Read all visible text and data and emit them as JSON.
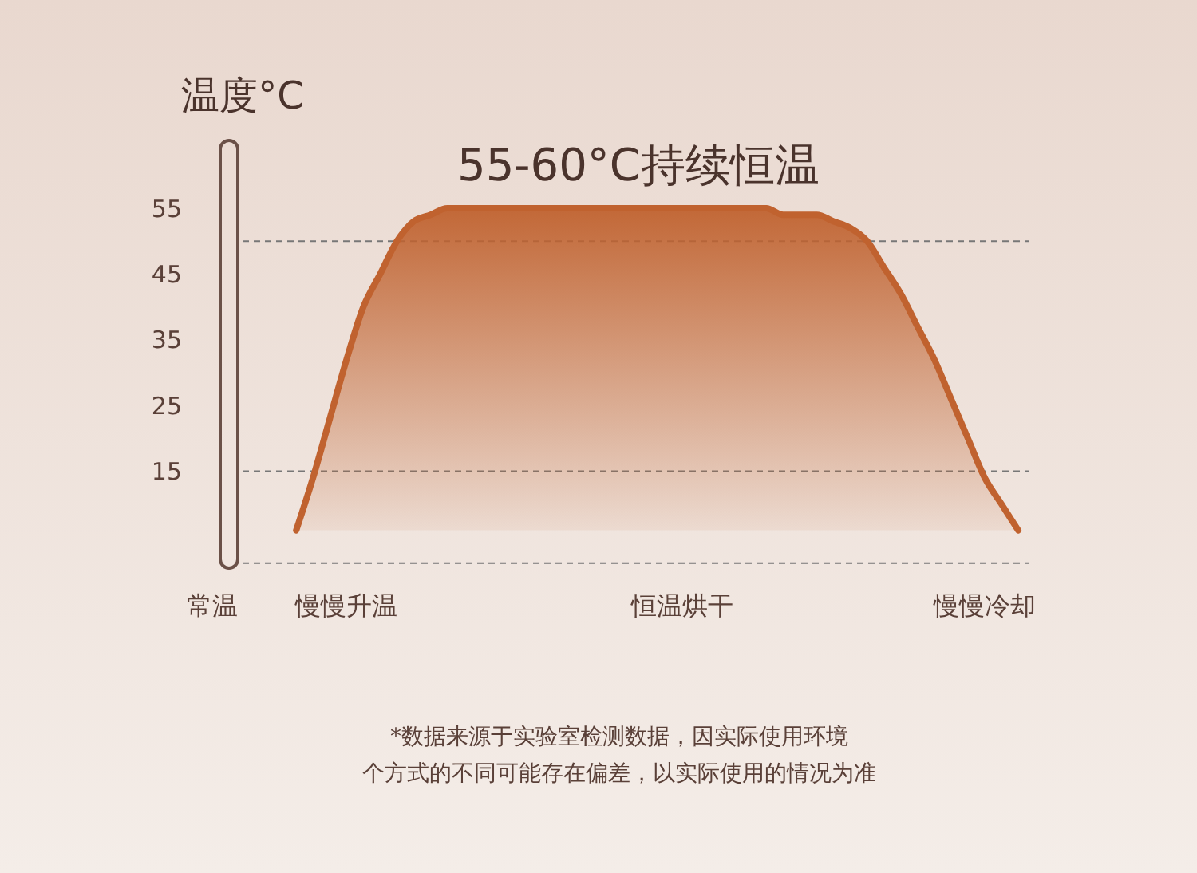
{
  "chart_data": {
    "type": "area",
    "title": "55-60°C持续恒温",
    "ylabel": "温度°C",
    "categories": [
      "常温",
      null,
      null,
      null,
      null,
      null,
      null,
      null,
      "慢慢升温",
      null,
      null,
      null,
      null,
      null,
      null,
      null,
      null,
      null,
      null,
      null,
      null,
      null,
      null,
      null,
      null,
      null,
      null,
      null,
      "恒温烘干",
      null,
      null,
      null,
      null,
      null,
      null,
      null,
      null,
      null,
      null,
      null,
      null,
      null,
      null,
      null,
      null,
      null,
      "慢慢冷却",
      null,
      null
    ],
    "ylim": [
      0,
      55
    ],
    "yticks": [
      15,
      25,
      35,
      45,
      55
    ],
    "series": [
      {
        "color": "#c0622f",
        "values": [
          null,
          null,
          null,
          null,
          null,
          6,
          14,
          23,
          32,
          40,
          45,
          50,
          53,
          54,
          55,
          55,
          55,
          55,
          55,
          55,
          55,
          55,
          55,
          55,
          55,
          55,
          55,
          55,
          55,
          55,
          55,
          55,
          55,
          55,
          54,
          54,
          54,
          53,
          52,
          50,
          46,
          42,
          37,
          32,
          26,
          20,
          14,
          10,
          6
        ]
      }
    ],
    "ref_lines": [
      {
        "axis": "y",
        "value": 50,
        "line_style": "dashed"
      },
      {
        "axis": "y",
        "value": 15,
        "line_style": "dashed"
      },
      {
        "axis": "y",
        "value": 1,
        "line_style": "dashed"
      }
    ],
    "annotations": [
      "*数据来源于实验室检测数据，因实际使用环境",
      "个方式的不同可能存在偏差，以实际使用的情况为准"
    ]
  }
}
